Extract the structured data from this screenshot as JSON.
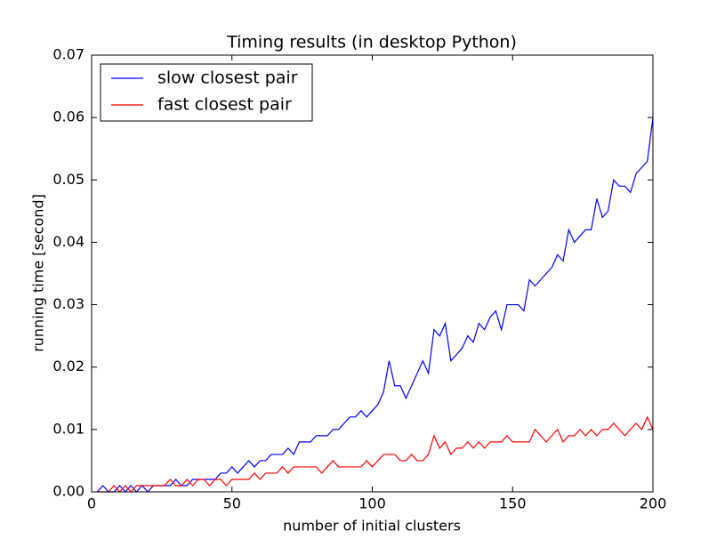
{
  "chart_data": {
    "type": "line",
    "title": "Timing results (in desktop Python)",
    "x_label": "number of initial clusters",
    "y_label": "running time [second]",
    "x": [
      2,
      4,
      6,
      8,
      10,
      12,
      14,
      16,
      18,
      20,
      22,
      24,
      26,
      28,
      30,
      32,
      34,
      36,
      38,
      40,
      42,
      44,
      46,
      48,
      50,
      52,
      54,
      56,
      58,
      60,
      62,
      64,
      66,
      68,
      70,
      72,
      74,
      76,
      78,
      80,
      82,
      84,
      86,
      88,
      90,
      92,
      94,
      96,
      98,
      100,
      102,
      104,
      106,
      108,
      110,
      112,
      114,
      116,
      118,
      120,
      122,
      124,
      126,
      128,
      130,
      132,
      134,
      136,
      138,
      140,
      142,
      144,
      146,
      148,
      150,
      152,
      154,
      156,
      158,
      160,
      162,
      164,
      166,
      168,
      170,
      172,
      174,
      176,
      178,
      180,
      182,
      184,
      186,
      188,
      190,
      192,
      194,
      196,
      198,
      200
    ],
    "series": [
      {
        "name": "slow closest pair",
        "color": "#0000ff",
        "values": [
          0,
          0.001,
          0,
          0,
          0.001,
          0,
          0.001,
          0,
          0.001,
          0,
          0.001,
          0.001,
          0.001,
          0.001,
          0.002,
          0.001,
          0.001,
          0.002,
          0.002,
          0.002,
          0.002,
          0.002,
          0.003,
          0.003,
          0.004,
          0.003,
          0.004,
          0.005,
          0.004,
          0.005,
          0.005,
          0.006,
          0.006,
          0.006,
          0.007,
          0.006,
          0.008,
          0.008,
          0.008,
          0.009,
          0.009,
          0.009,
          0.01,
          0.01,
          0.011,
          0.012,
          0.012,
          0.013,
          0.012,
          0.013,
          0.014,
          0.016,
          0.021,
          0.017,
          0.017,
          0.015,
          0.017,
          0.019,
          0.021,
          0.019,
          0.026,
          0.025,
          0.027,
          0.021,
          0.022,
          0.023,
          0.025,
          0.024,
          0.027,
          0.026,
          0.028,
          0.029,
          0.026,
          0.03,
          0.03,
          0.03,
          0.029,
          0.034,
          0.033,
          0.034,
          0.035,
          0.036,
          0.038,
          0.037,
          0.042,
          0.04,
          0.041,
          0.042,
          0.042,
          0.047,
          0.044,
          0.045,
          0.05,
          0.049,
          0.049,
          0.048,
          0.051,
          0.052,
          0.053,
          0.06
        ]
      },
      {
        "name": "fast closest pair",
        "color": "#ff0000",
        "values": [
          0,
          0,
          0,
          0.001,
          0,
          0.001,
          0,
          0.001,
          0.001,
          0.001,
          0.001,
          0.001,
          0.001,
          0.002,
          0.001,
          0.001,
          0.002,
          0.001,
          0.002,
          0.002,
          0.001,
          0.002,
          0.002,
          0.001,
          0.002,
          0.002,
          0.002,
          0.002,
          0.003,
          0.002,
          0.003,
          0.003,
          0.003,
          0.004,
          0.003,
          0.004,
          0.004,
          0.004,
          0.004,
          0.004,
          0.003,
          0.004,
          0.005,
          0.004,
          0.004,
          0.004,
          0.004,
          0.004,
          0.005,
          0.004,
          0.005,
          0.006,
          0.006,
          0.006,
          0.005,
          0.005,
          0.006,
          0.005,
          0.005,
          0.006,
          0.009,
          0.007,
          0.008,
          0.006,
          0.007,
          0.007,
          0.008,
          0.007,
          0.008,
          0.007,
          0.008,
          0.008,
          0.008,
          0.009,
          0.008,
          0.008,
          0.008,
          0.008,
          0.01,
          0.009,
          0.008,
          0.009,
          0.01,
          0.008,
          0.009,
          0.009,
          0.01,
          0.009,
          0.01,
          0.009,
          0.01,
          0.01,
          0.011,
          0.01,
          0.009,
          0.01,
          0.011,
          0.01,
          0.012,
          0.01
        ]
      }
    ],
    "xlim": [
      0,
      200
    ],
    "xticks": [
      0,
      50,
      100,
      150,
      200
    ],
    "ylim": [
      0,
      0.07
    ],
    "yticks": [
      {
        "value": 0,
        "label": "0.00"
      },
      {
        "value": 0.01,
        "label": "0.01"
      },
      {
        "value": 0.02,
        "label": "0.02"
      },
      {
        "value": 0.03,
        "label": "0.03"
      },
      {
        "value": 0.04,
        "label": "0.04"
      },
      {
        "value": 0.05,
        "label": "0.05"
      },
      {
        "value": 0.06,
        "label": "0.06"
      },
      {
        "value": 0.07,
        "label": "0.07"
      }
    ],
    "legend": "upper left"
  }
}
